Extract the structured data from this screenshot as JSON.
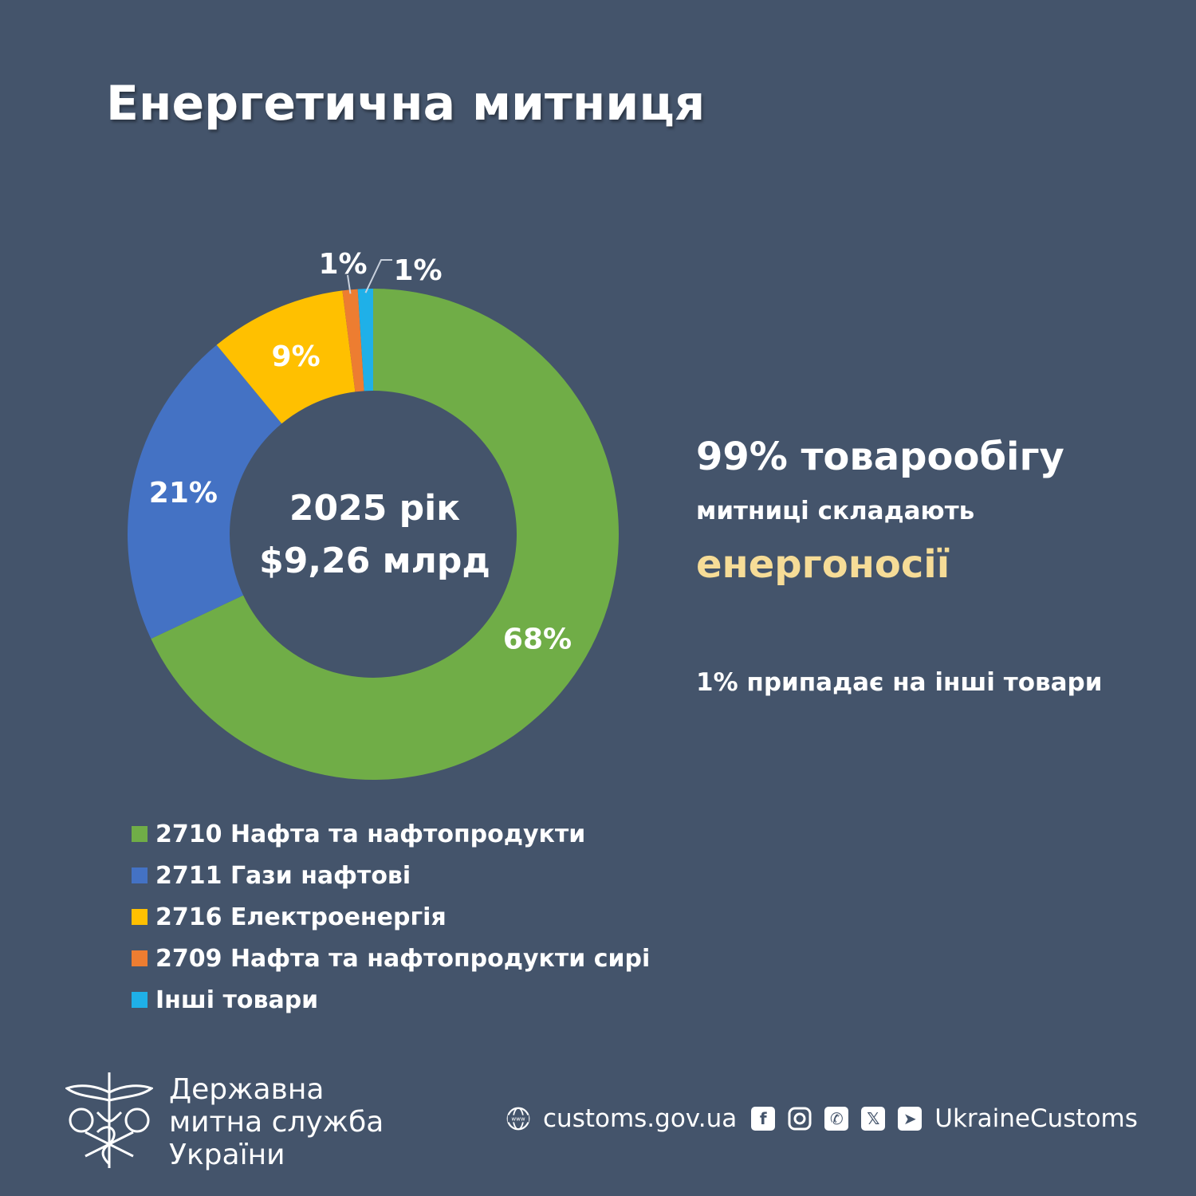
{
  "title": "Енергетична митниця",
  "chart_data": {
    "type": "pie",
    "variant": "donut",
    "title": "Енергетична митниця",
    "center_label": [
      "2025 рік",
      "$9,26 млрд"
    ],
    "categories": [
      "2710 Нафта та нафтопродукти",
      "2711 Гази нафтові",
      "2716 Електроенергія",
      "2709 Нафта та нафтопродукти сирі",
      "Інші товари"
    ],
    "values": [
      68,
      21,
      9,
      1,
      1
    ],
    "data_labels": [
      "68%",
      "21%",
      "9%",
      "1%",
      "1%"
    ],
    "colors": [
      "#70ad47",
      "#4472c4",
      "#ffc000",
      "#ed7d31",
      "#1fb0e8"
    ],
    "legend": "bottom-left"
  },
  "side": {
    "line1": "99% товарообігу",
    "line2": "митниці складають",
    "line3": "енергоносії",
    "line4": "1% припадає на інші товари"
  },
  "footer": {
    "org": [
      "Державна",
      "митна служба",
      "України"
    ],
    "website": "customs.gov.ua",
    "handle": "UkraineCustoms",
    "icons": [
      "globe-icon",
      "facebook-icon",
      "instagram-icon",
      "whatsapp-icon",
      "x-icon",
      "telegram-icon"
    ]
  }
}
